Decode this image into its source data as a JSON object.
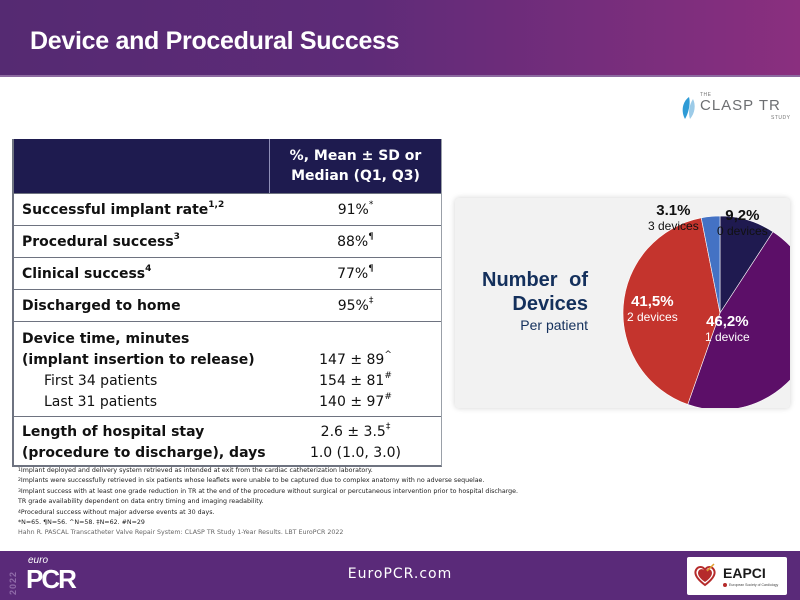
{
  "header": {
    "title": "Device and Procedural Success"
  },
  "logo": {
    "the": "THE",
    "name": "CLASP TR",
    "study": "STUDY"
  },
  "table": {
    "column_header": [
      "%, Mean ± SD or",
      "Median (Q1, Q3)"
    ],
    "rows": [
      {
        "label": "Successful implant rate",
        "sup": "1,2",
        "value": "91%",
        "value_mark": "*"
      },
      {
        "label": "Procedural success",
        "sup": "3",
        "value": "88%",
        "value_mark": "¶"
      },
      {
        "label": "Clinical success",
        "sup": "4",
        "value": "77%",
        "value_mark": "¶"
      },
      {
        "label": "Discharged to home",
        "sup": "",
        "value": "95%",
        "value_mark": "‡"
      }
    ],
    "device_time": {
      "label1": "Device time, minutes",
      "label2": "(implant insertion to release)",
      "value": "147 ± 89",
      "value_mark": "^",
      "sub": [
        {
          "label": "First 34 patients",
          "value": "154 ± 81",
          "value_mark": "#"
        },
        {
          "label": "Last 31 patients",
          "value": "140 ± 97",
          "value_mark": "#"
        }
      ]
    },
    "hospital_stay": {
      "label1": "Length of hospital stay",
      "label2": "(procedure to discharge), days",
      "value1": "2.6 ± 3.5",
      "value1_mark": "‡",
      "value2": "1.0 (1.0, 3.0)"
    }
  },
  "chart_data": {
    "type": "pie",
    "title": "Number of Devices",
    "subtitle": "Per patient",
    "slices": [
      {
        "label": "0 devices",
        "value": 9.2,
        "display": "9,2%",
        "color": "#1f1a50"
      },
      {
        "label": "1 device",
        "value": 46.2,
        "display": "46,2%",
        "color": "#5c0f68"
      },
      {
        "label": "2 devices",
        "value": 41.5,
        "display": "41,5%",
        "color": "#c4342d"
      },
      {
        "label": "3 devices",
        "value": 3.1,
        "display": "3.1%",
        "color": "#4472c4"
      }
    ],
    "start": "12 o'clock",
    "direction": "clockwise"
  },
  "footnotes": {
    "lines": [
      {
        "sup": "1",
        "text": "Implant deployed and delivery system retrieved  as intended at exit from the cardiac catheterization laboratory."
      },
      {
        "sup": "2",
        "text": "Implants were successfully retrieved in six patients whose leaflets were unable to be captured due to complex anatomy with no adverse sequelae."
      },
      {
        "sup": "3",
        "text": "Implant success with at least one grade reduction in TR at the end of the procedure without surgical or percutaneous intervention prior to hospital discharge."
      },
      {
        "sup": "",
        "text": "TR grade availability dependent on data entry timing and imaging readability."
      },
      {
        "sup": "4",
        "text": "Procedural success without major adverse events at 30 days."
      },
      {
        "sup": "",
        "text": "*N=65. ¶N=56. ^N=58. ‡N=62. #N=29"
      }
    ],
    "reference": "Hahn R. PASCAL Transcatheter Valve Repair System: CLASP TR Study 1-Year Results. LBT EuroPCR 2022"
  },
  "footer": {
    "year": "2022",
    "euro": "euro",
    "pcr": "PCR",
    "site": "EuroPCR.com",
    "eapci_name": "EAPCI",
    "eapci_sub": "European Society of Cardiology"
  },
  "colors": {
    "header_start": "#552a72",
    "header_end": "#8a2f7f",
    "table_header": "#1e1b4f",
    "footer": "#5a2a79",
    "chart_title": "#14305c"
  }
}
